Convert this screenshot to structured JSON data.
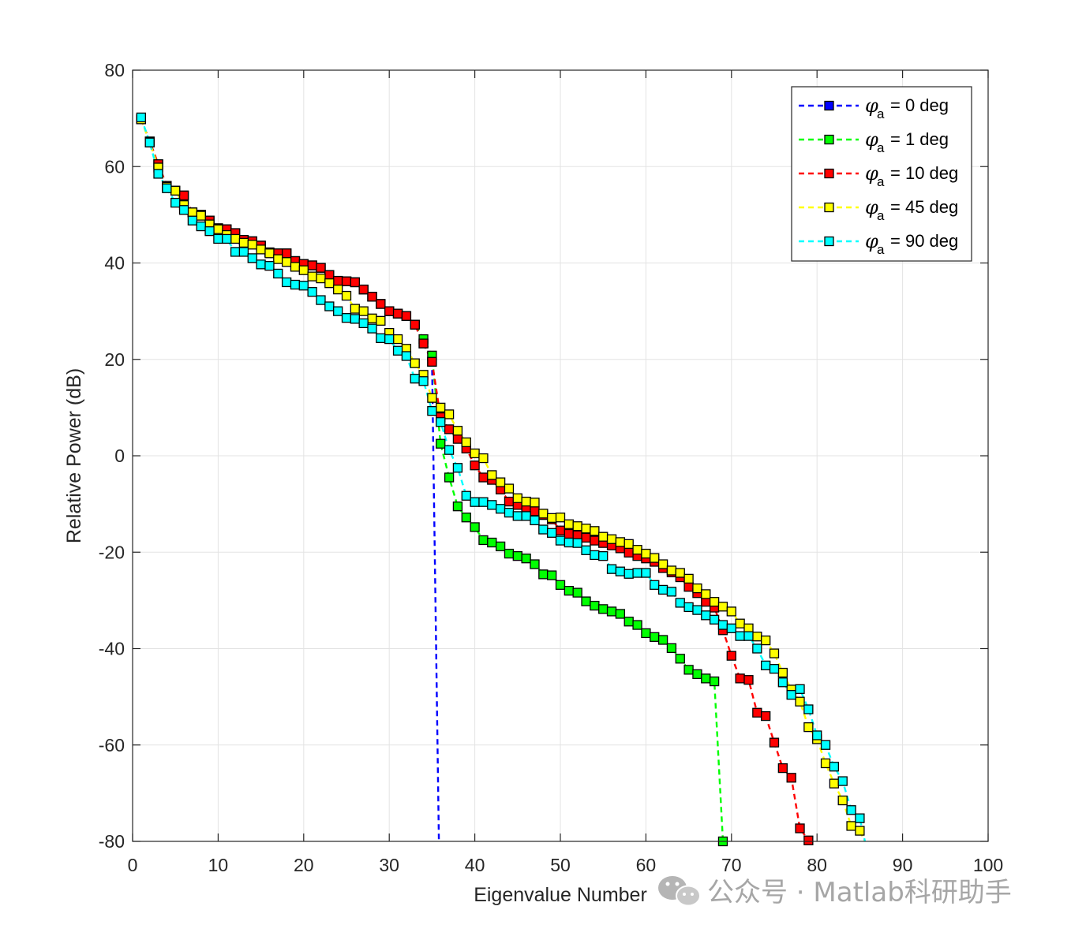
{
  "chart_data": {
    "type": "scatter",
    "title": "",
    "xlabel": "Eigenvalue Number",
    "ylabel": "Relative Power (dB)",
    "xlim": [
      0,
      100
    ],
    "ylim": [
      -80,
      80
    ],
    "xticks": [
      0,
      10,
      20,
      30,
      40,
      50,
      60,
      70,
      80,
      90,
      100
    ],
    "yticks": [
      -80,
      -60,
      -40,
      -20,
      0,
      20,
      40,
      60,
      80
    ],
    "grid": true,
    "legend_position": "top-right",
    "legend_symbol": "φ",
    "legend_subscript": "a",
    "series": [
      {
        "name": "= 0 deg",
        "color": "#0000ff",
        "line_style": "dashed",
        "marker": "square",
        "x": [
          1,
          2,
          3,
          4,
          5,
          6,
          7,
          8,
          9,
          10,
          11,
          12,
          13,
          14,
          15,
          16,
          17,
          18,
          19,
          20,
          21,
          22,
          23,
          24,
          25,
          26,
          27,
          28,
          29,
          30,
          31,
          32,
          33,
          34,
          35,
          35.8
        ],
        "y": [
          69.8,
          65.2,
          60.5,
          56.0,
          55.0,
          54.0,
          50.5,
          50.0,
          48.8,
          47.2,
          47.0,
          46.2,
          44.8,
          44.5,
          43.6,
          42.2,
          42.0,
          42.0,
          40.4,
          39.8,
          39.5,
          39.0,
          37.5,
          36.3,
          36.2,
          36.0,
          34.5,
          33.0,
          31.5,
          30.0,
          29.5,
          29.0,
          27.2,
          23.3,
          19.5,
          -80
        ]
      },
      {
        "name": "= 1 deg",
        "color": "#00ff00",
        "line_style": "dashed",
        "marker": "square",
        "x": [
          1,
          2,
          3,
          4,
          5,
          6,
          7,
          8,
          9,
          10,
          11,
          12,
          13,
          14,
          15,
          16,
          17,
          18,
          19,
          20,
          21,
          22,
          23,
          24,
          25,
          26,
          27,
          28,
          29,
          30,
          31,
          32,
          33,
          34,
          35,
          36,
          37,
          38,
          39,
          40,
          41,
          42,
          43,
          44,
          45,
          46,
          47,
          48,
          49,
          50,
          51,
          52,
          53,
          54,
          55,
          56,
          57,
          58,
          59,
          60,
          61,
          62,
          63,
          64,
          65,
          66,
          67,
          68,
          69
        ],
        "y": [
          69.8,
          65.2,
          60.5,
          56.0,
          55.0,
          54.0,
          50.5,
          50.0,
          48.8,
          47.2,
          47.0,
          46.2,
          44.8,
          44.5,
          43.6,
          42.2,
          42.0,
          42.0,
          40.4,
          39.8,
          39.5,
          39.0,
          37.5,
          36.3,
          36.2,
          36.0,
          34.5,
          33.0,
          31.5,
          30.0,
          29.5,
          29.0,
          27.2,
          24.2,
          20.8,
          2.5,
          -4.5,
          -10.5,
          -12.8,
          -14.8,
          -17.5,
          -18.0,
          -18.8,
          -20.3,
          -20.8,
          -21.3,
          -22.5,
          -24.6,
          -24.8,
          -26.8,
          -28.0,
          -28.4,
          -30.2,
          -31.1,
          -31.8,
          -32.3,
          -32.8,
          -34.4,
          -35.1,
          -36.8,
          -37.6,
          -38.2,
          -39.9,
          -42.1,
          -44.4,
          -45.3,
          -46.2,
          -46.8,
          -80
        ]
      },
      {
        "name": "= 10 deg",
        "color": "#ff0000",
        "line_style": "dashed",
        "marker": "square",
        "x": [
          1,
          2,
          3,
          4,
          5,
          6,
          7,
          8,
          9,
          10,
          11,
          12,
          13,
          14,
          15,
          16,
          17,
          18,
          19,
          20,
          21,
          22,
          23,
          24,
          25,
          26,
          27,
          28,
          29,
          30,
          31,
          32,
          33,
          34,
          35,
          36,
          37,
          38,
          39,
          40,
          41,
          42,
          43,
          44,
          45,
          46,
          47,
          48,
          49,
          50,
          51,
          52,
          53,
          54,
          55,
          56,
          57,
          58,
          59,
          60,
          61,
          62,
          63,
          64,
          65,
          66,
          67,
          68,
          69,
          70,
          71,
          72,
          73,
          74,
          75,
          76,
          77,
          78,
          79
        ],
        "y": [
          69.8,
          65.2,
          60.5,
          56.0,
          55.0,
          54.0,
          50.5,
          50.0,
          48.8,
          47.2,
          47.0,
          46.2,
          44.8,
          44.5,
          43.6,
          42.2,
          42.0,
          42.0,
          40.4,
          39.8,
          39.5,
          39.0,
          37.5,
          36.3,
          36.2,
          36.0,
          34.5,
          33.0,
          31.5,
          30.0,
          29.5,
          29.0,
          27.2,
          23.3,
          19.5,
          8.0,
          5.5,
          3.5,
          1.5,
          -2.0,
          -4.5,
          -5.0,
          -7.0,
          -9.5,
          -10.2,
          -10.8,
          -11.5,
          -12.3,
          -13.2,
          -15.5,
          -16.2,
          -16.5,
          -17.0,
          -17.6,
          -18.1,
          -18.6,
          -19.2,
          -20.1,
          -20.8,
          -21.3,
          -22.0,
          -23.3,
          -24.2,
          -25.2,
          -27.2,
          -28.5,
          -30.3,
          -31.5,
          -36.2,
          -41.5,
          -46.2,
          -46.5,
          -53.3,
          -54.0,
          -59.5,
          -64.8,
          -66.8,
          -77.3,
          -79.8
        ]
      },
      {
        "name": "= 45 deg",
        "color": "#ffff00",
        "line_style": "dashed",
        "marker": "square",
        "x": [
          1,
          2,
          3,
          4,
          5,
          6,
          7,
          8,
          9,
          10,
          11,
          12,
          13,
          14,
          15,
          16,
          17,
          18,
          19,
          20,
          21,
          22,
          23,
          24,
          25,
          26,
          27,
          28,
          29,
          30,
          31,
          32,
          33,
          34,
          35,
          36,
          37,
          38,
          39,
          40,
          41,
          42,
          43,
          44,
          45,
          46,
          47,
          48,
          49,
          50,
          51,
          52,
          53,
          54,
          55,
          56,
          57,
          58,
          59,
          60,
          61,
          62,
          63,
          64,
          65,
          66,
          67,
          68,
          69,
          70,
          71,
          72,
          73,
          74,
          75,
          76,
          77,
          78,
          79,
          80,
          81,
          82,
          83,
          84,
          85,
          85.6
        ],
        "y": [
          69.8,
          65.0,
          59.8,
          55.8,
          55.0,
          52.0,
          50.5,
          49.8,
          48.0,
          47.0,
          45.8,
          45.0,
          44.2,
          43.8,
          42.8,
          42.0,
          40.8,
          40.2,
          39.2,
          38.5,
          37.2,
          36.8,
          35.8,
          34.5,
          33.2,
          30.5,
          30.0,
          28.5,
          28.0,
          25.5,
          24.2,
          22.2,
          19.2,
          16.8,
          12.0,
          10.0,
          8.6,
          5.2,
          2.8,
          0.5,
          -0.5,
          -4.0,
          -5.5,
          -6.8,
          -8.8,
          -9.5,
          -9.7,
          -12.0,
          -12.9,
          -12.8,
          -14.2,
          -14.6,
          -15.1,
          -15.6,
          -16.8,
          -17.3,
          -17.9,
          -18.3,
          -19.5,
          -20.3,
          -21.2,
          -22.5,
          -23.8,
          -24.3,
          -25.5,
          -27.5,
          -28.7,
          -30.3,
          -31.3,
          -32.3,
          -34.8,
          -35.8,
          -37.5,
          -38.3,
          -41.0,
          -45.0,
          -48.5,
          -51.0,
          -56.3,
          -58.8,
          -63.8,
          -68.0,
          -71.5,
          -76.8,
          -77.8,
          -80
        ]
      },
      {
        "name": "= 90 deg",
        "color": "#00ffff",
        "line_style": "dashed",
        "marker": "square",
        "x": [
          1,
          2,
          3,
          4,
          5,
          6,
          7,
          8,
          9,
          10,
          11,
          12,
          13,
          14,
          15,
          16,
          17,
          18,
          19,
          20,
          21,
          22,
          23,
          24,
          25,
          26,
          27,
          28,
          29,
          30,
          31,
          32,
          33,
          34,
          35,
          36,
          37,
          38,
          39,
          40,
          41,
          42,
          43,
          44,
          45,
          46,
          47,
          48,
          49,
          50,
          51,
          52,
          53,
          54,
          55,
          56,
          57,
          58,
          59,
          60,
          61,
          62,
          63,
          64,
          65,
          66,
          67,
          68,
          69,
          70,
          71,
          72,
          73,
          74,
          75,
          76,
          77,
          78,
          79,
          80,
          81,
          82,
          83,
          84,
          85,
          85.6
        ],
        "y": [
          70.2,
          65.0,
          58.5,
          55.5,
          52.5,
          51.0,
          48.8,
          47.6,
          46.6,
          45.0,
          45.0,
          42.3,
          42.3,
          41.0,
          39.7,
          39.4,
          37.8,
          36.0,
          35.5,
          35.3,
          34.0,
          32.3,
          31.0,
          30.0,
          28.6,
          28.4,
          27.5,
          26.4,
          24.4,
          24.2,
          21.8,
          20.7,
          16.0,
          15.5,
          9.3,
          7.0,
          1.2,
          -2.5,
          -8.3,
          -9.6,
          -9.6,
          -10.2,
          -11.0,
          -11.8,
          -12.5,
          -12.5,
          -13.4,
          -15.3,
          -16.0,
          -17.6,
          -18.0,
          -18.1,
          -19.6,
          -20.6,
          -20.8,
          -23.5,
          -24.0,
          -24.5,
          -24.3,
          -24.3,
          -26.8,
          -27.8,
          -28.2,
          -30.5,
          -31.4,
          -32.0,
          -33.1,
          -34.0,
          -35.1,
          -35.8,
          -37.4,
          -37.4,
          -40.0,
          -43.5,
          -44.2,
          -47.0,
          -49.6,
          -48.4,
          -52.6,
          -58.0,
          -60.0,
          -64.5,
          -67.5,
          -73.5,
          -75.2,
          -80
        ]
      }
    ]
  },
  "watermark": {
    "text": "公众号 · Matlab科研助手",
    "icon": "wechat-icon"
  }
}
